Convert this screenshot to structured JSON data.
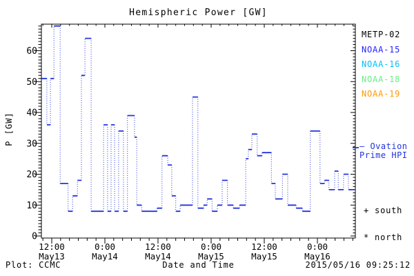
{
  "title": "Hemispheric Power [GW]",
  "colors": {
    "line": "#2233dd",
    "frame": "#000000",
    "text": "#000000",
    "metp02": "#000000",
    "noaa15": "#2222ff",
    "noaa16": "#00bfff",
    "noaa18": "#66ee88",
    "noaa19": "#ff9900",
    "ovation_note": "#2233dd"
  },
  "legend": {
    "items": [
      {
        "label": "METP-02",
        "color_key": "metp02"
      },
      {
        "label": "NOAA-15",
        "color_key": "noaa15"
      },
      {
        "label": "NOAA-16",
        "color_key": "noaa16"
      },
      {
        "label": "NOAA-18",
        "color_key": "noaa18"
      },
      {
        "label": "NOAA-19",
        "color_key": "noaa19"
      }
    ],
    "ovation_line1": "— Ovation",
    "ovation_line2": "Prime HPI",
    "south_marker": "+ south",
    "north_marker": "* north"
  },
  "footer": {
    "left": "Plot: CCMC",
    "xlabel": "Date and Time",
    "timestamp": "2015/05/16 09:25:12"
  },
  "chart_data": {
    "type": "line",
    "style": "step-post",
    "title": "Hemispheric Power [GW]",
    "xlabel": "Date and Time",
    "ylabel": "P [GW]",
    "series_name": "Ovation Prime HPI",
    "ylim": [
      0,
      68.5
    ],
    "yticks": [
      0,
      10,
      20,
      30,
      40,
      50,
      60
    ],
    "y_minor_step_gw": 1,
    "x_unit": "hours since 2015-05-13 00:00",
    "x_minor_step_hours": 2,
    "xticks": [
      {
        "t": 12,
        "time": "12:00",
        "date": "May13"
      },
      {
        "t": 24,
        "time": "0:00",
        "date": "May14"
      },
      {
        "t": 36,
        "time": "12:00",
        "date": "May14"
      },
      {
        "t": 48,
        "time": "0:00",
        "date": "May15"
      },
      {
        "t": 60,
        "time": "12:00",
        "date": "May15"
      },
      {
        "t": 72,
        "time": "0:00",
        "date": "May16"
      }
    ],
    "steps_t": [
      9.7,
      10.9,
      11.7,
      12.5,
      13.9,
      15.7,
      16.7,
      17.8,
      18.7,
      19.5,
      20.9,
      23.7,
      24.6,
      25.4,
      26.2,
      27.1,
      28.2,
      29.1,
      30.7,
      31.2,
      32.3,
      35.8,
      36.9,
      38.2,
      39.1,
      40.0,
      41.0,
      43.8,
      45.0,
      46.3,
      47.1,
      48.2,
      49.4,
      50.5,
      51.7,
      53.0,
      54.4,
      55.8,
      56.4,
      57.2,
      58.4,
      59.5,
      61.6,
      62.5,
      64.1,
      65.3,
      67.2,
      68.6,
      70.4,
      72.6,
      73.6,
      74.6,
      75.9,
      76.7,
      77.9,
      79.0
    ],
    "steps_v": [
      51,
      36,
      51,
      68,
      17,
      8,
      13,
      18,
      52,
      64,
      8,
      36,
      8,
      36,
      8,
      34,
      8,
      39,
      32,
      10,
      8,
      9,
      26,
      23,
      13,
      8,
      10,
      45,
      9,
      10,
      12,
      8,
      10,
      18,
      10,
      9,
      10,
      25,
      28,
      33,
      26,
      27,
      17,
      12,
      20,
      10,
      9,
      8,
      34,
      17,
      18,
      15,
      21,
      15,
      20,
      15
    ],
    "t_end": 80.4,
    "grid": false,
    "legend_position": "right-margin"
  }
}
